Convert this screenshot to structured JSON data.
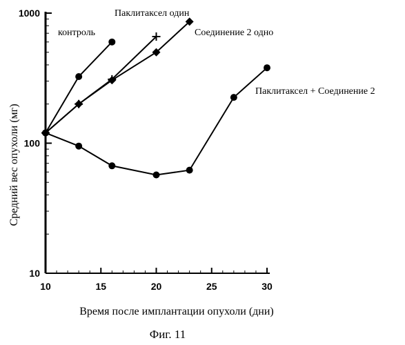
{
  "chart_data": {
    "type": "line",
    "xlabel": "Время после имплантации опухоли (дни)",
    "ylabel": "Средний вес опухоли (мг)",
    "caption": "Фиг. 11",
    "xlim": [
      10,
      30
    ],
    "ylim": [
      10,
      1000
    ],
    "yscale": "log",
    "x_ticks": [
      "10",
      "15",
      "20",
      "25",
      "30"
    ],
    "y_ticks": [
      "10",
      "100",
      "1000"
    ],
    "grid": false,
    "series": [
      {
        "name": "контроль",
        "marker": "circle",
        "x": [
          10,
          13,
          16
        ],
        "y": [
          120,
          325,
          600
        ]
      },
      {
        "name": "Паклитаксел один",
        "marker": "plus",
        "x": [
          10,
          13,
          16,
          20
        ],
        "y": [
          120,
          200,
          310,
          660
        ]
      },
      {
        "name": "Соединение 2 одно",
        "marker": "diamond",
        "x": [
          10,
          13,
          16,
          20,
          23
        ],
        "y": [
          120,
          200,
          305,
          500,
          860
        ]
      },
      {
        "name": "Паклитаксел + Соединение 2",
        "marker": "circle",
        "x": [
          10,
          13,
          16,
          20,
          23,
          27,
          30
        ],
        "y": [
          120,
          95,
          67,
          57,
          62,
          225,
          380
        ]
      }
    ]
  }
}
